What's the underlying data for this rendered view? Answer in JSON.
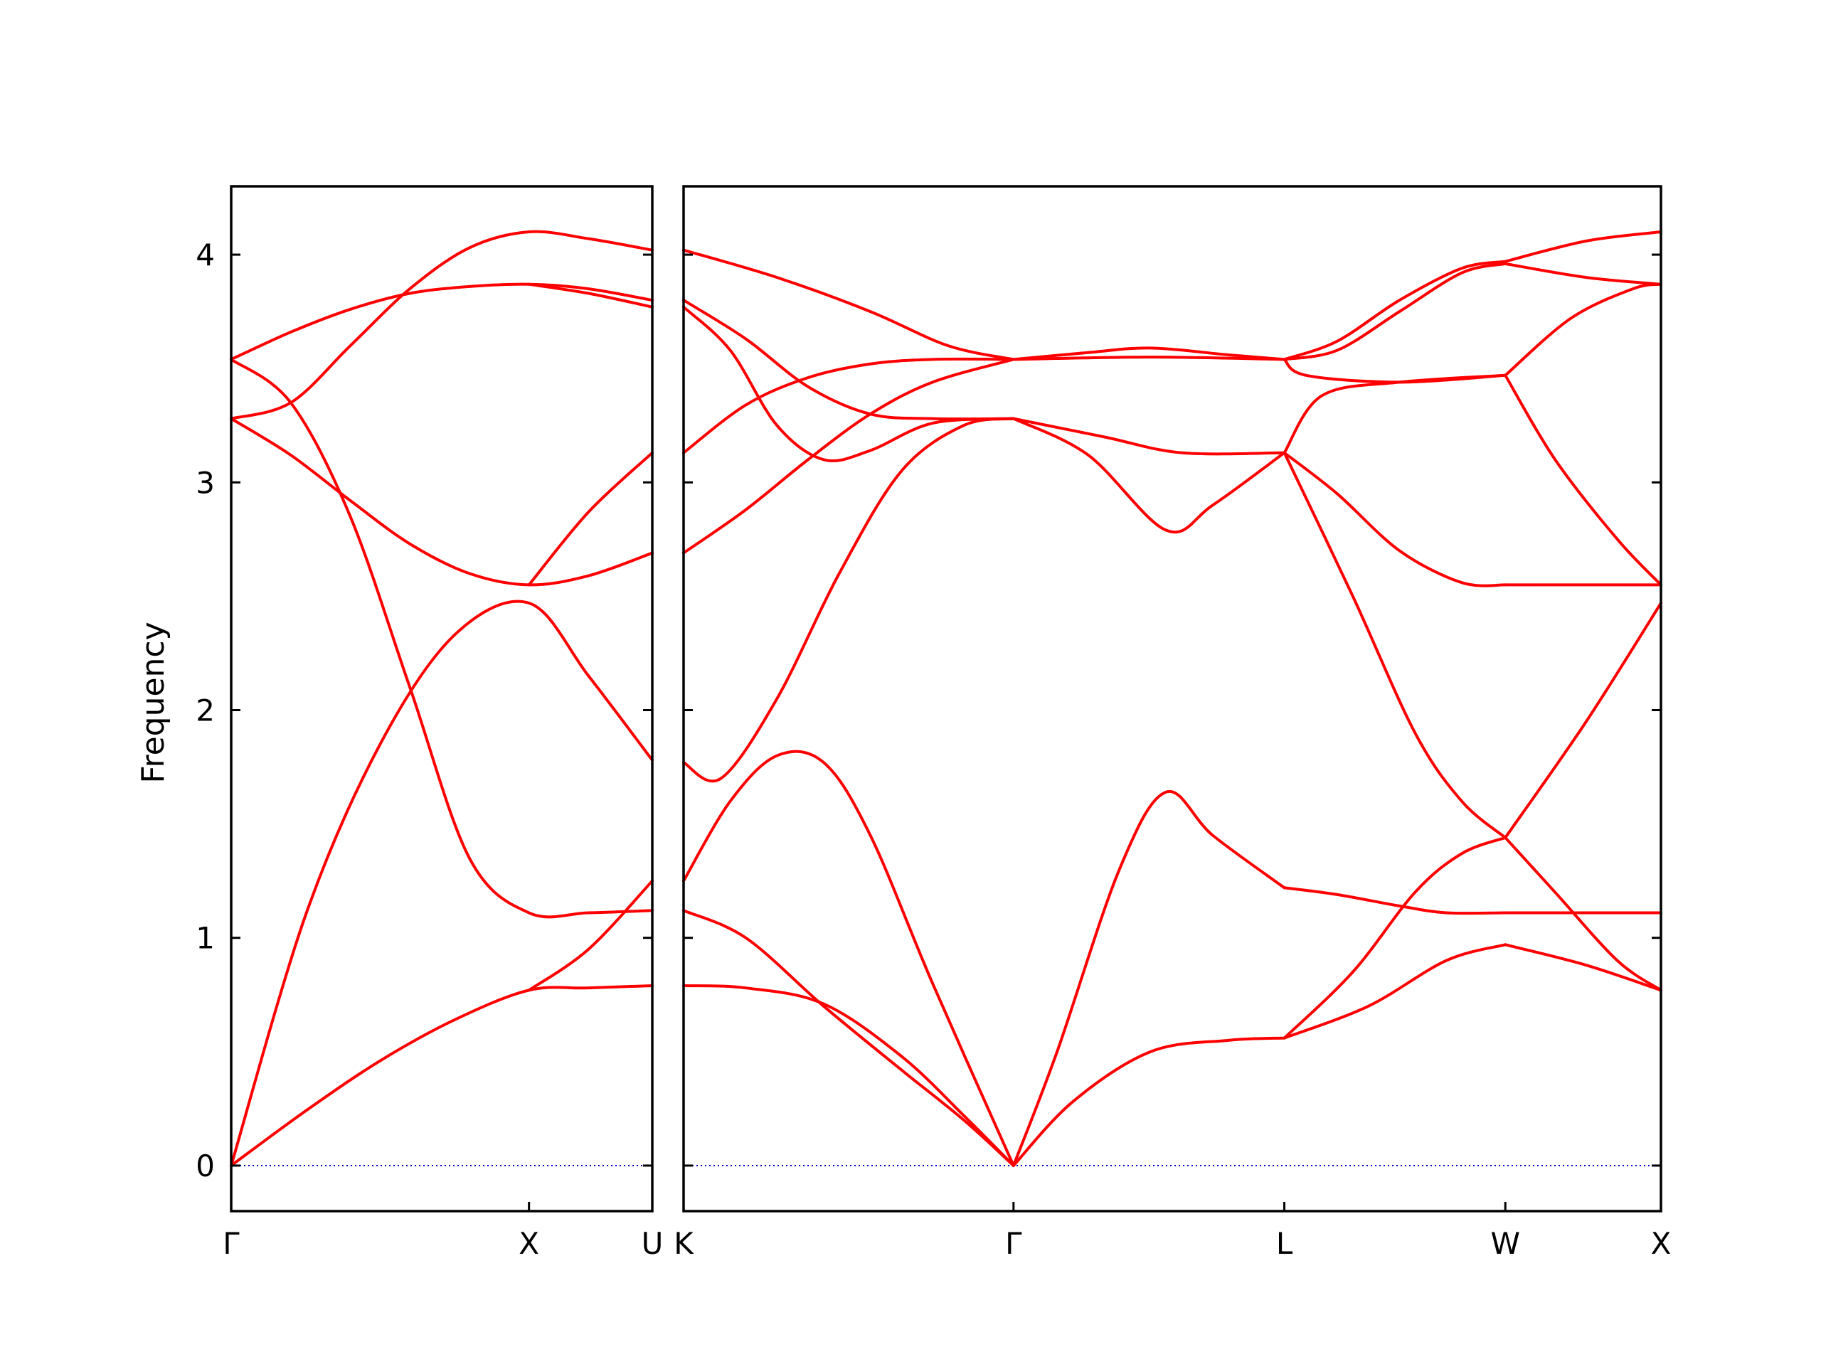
{
  "chart_data": {
    "type": "line",
    "title": "",
    "ylabel": "Frequency",
    "ylim": [
      -0.2,
      4.3
    ],
    "y_ticks": [
      0,
      1,
      2,
      3,
      4
    ],
    "y_tick_labels": [
      "0",
      "1",
      "2",
      "3",
      "4"
    ],
    "grid": false,
    "colors": {
      "bands": "#ff0000",
      "zero_line": "#0000cc",
      "axes": "#000000"
    },
    "panels": [
      {
        "x_range": [
          0,
          1.414
        ],
        "x_ticks": [
          0,
          1.0,
          1.414
        ],
        "x_tick_labels": [
          "Γ",
          "X",
          "U"
        ],
        "series": [
          {
            "x": [
              0,
              0.25,
              0.5,
              0.75,
              1.0,
              1.2,
              1.414
            ],
            "y": [
              0.0,
              0.24,
              0.46,
              0.64,
              0.77,
              0.78,
              0.79
            ]
          },
          {
            "x": [
              0,
              0.25,
              0.5,
              0.75,
              1.0,
              1.2,
              1.414
            ],
            "y": [
              0.0,
              1.1,
              1.85,
              2.33,
              2.47,
              2.15,
              1.78
            ]
          },
          {
            "x": [
              0,
              0.2,
              0.4,
              0.6,
              0.8,
              1.0,
              1.2,
              1.414
            ],
            "y": [
              3.54,
              3.35,
              2.85,
              2.1,
              1.35,
              1.11,
              1.11,
              1.12
            ]
          },
          {
            "x": [
              0,
              0.2,
              0.4,
              0.6,
              0.8,
              1.0,
              1.2,
              1.414
            ],
            "y": [
              3.28,
              3.12,
              2.92,
              2.73,
              2.6,
              2.55,
              2.59,
              2.69
            ]
          },
          {
            "x": [
              0,
              0.2,
              0.4,
              0.6,
              0.8,
              1.0,
              1.2,
              1.414
            ],
            "y": [
              3.28,
              3.35,
              3.6,
              3.85,
              4.03,
              4.1,
              4.07,
              4.02
            ]
          },
          {
            "x": [
              0,
              0.2,
              0.4,
              0.6,
              0.8,
              1.0,
              1.2,
              1.414
            ],
            "y": [
              3.54,
              3.66,
              3.76,
              3.83,
              3.86,
              3.87,
              3.85,
              3.8
            ]
          },
          {
            "x": [
              1.0,
              1.2,
              1.414
            ],
            "y": [
              2.55,
              2.87,
              3.13
            ]
          },
          {
            "x": [
              1.0,
              1.2,
              1.414
            ],
            "y": [
              0.77,
              0.95,
              1.25
            ]
          },
          {
            "x": [
              1.0,
              1.2,
              1.414
            ],
            "y": [
              3.87,
              3.83,
              3.77
            ]
          }
        ]
      },
      {
        "x_range": [
          0,
          3.14
        ],
        "x_ticks": [
          0,
          1.06,
          1.93,
          2.64,
          3.14
        ],
        "x_tick_labels": [
          "K",
          "Γ",
          "L",
          "W",
          "X"
        ],
        "series": [
          {
            "x": [
              0,
              0.2,
              0.45,
              0.7,
              0.9,
              1.06
            ],
            "y": [
              0.79,
              0.78,
              0.71,
              0.48,
              0.22,
              0.0
            ]
          },
          {
            "x": [
              0,
              0.2,
              0.45,
              0.7,
              0.9,
              1.06
            ],
            "y": [
              1.12,
              1.0,
              0.7,
              0.42,
              0.2,
              0.0
            ]
          },
          {
            "x": [
              0,
              0.15,
              0.3,
              0.45,
              0.6,
              0.8,
              1.06
            ],
            "y": [
              1.25,
              1.6,
              1.8,
              1.77,
              1.45,
              0.8,
              0.0
            ]
          },
          {
            "x": [
              0,
              0.12,
              0.3,
              0.5,
              0.7,
              0.9,
              1.06
            ],
            "y": [
              1.77,
              1.7,
              2.05,
              2.6,
              3.05,
              3.25,
              3.28
            ]
          },
          {
            "x": [
              0,
              0.2,
              0.4,
              0.6,
              0.8,
              1.06
            ],
            "y": [
              2.69,
              2.88,
              3.1,
              3.3,
              3.44,
              3.54
            ]
          },
          {
            "x": [
              0,
              0.2,
              0.4,
              0.6,
              0.8,
              1.06
            ],
            "y": [
              3.13,
              3.34,
              3.46,
              3.52,
              3.54,
              3.54
            ]
          },
          {
            "x": [
              0,
              0.2,
              0.4,
              0.6,
              0.8,
              1.06
            ],
            "y": [
              3.8,
              3.63,
              3.42,
              3.3,
              3.28,
              3.28
            ]
          },
          {
            "x": [
              0,
              0.15,
              0.3,
              0.45,
              0.6,
              0.8,
              1.06
            ],
            "y": [
              3.77,
              3.58,
              3.25,
              3.1,
              3.14,
              3.26,
              3.28
            ]
          },
          {
            "x": [
              0,
              0.3,
              0.6,
              0.85,
              1.06
            ],
            "y": [
              4.02,
              3.9,
              3.75,
              3.6,
              3.54
            ]
          },
          {
            "x": [
              1.06,
              1.2,
              1.4,
              1.55,
              1.7,
              1.93
            ],
            "y": [
              0.0,
              0.5,
              1.3,
              1.64,
              1.45,
              1.22
            ]
          },
          {
            "x": [
              1.06,
              1.25,
              1.5,
              1.75,
              1.93
            ],
            "y": [
              0.0,
              0.28,
              0.5,
              0.55,
              0.56
            ]
          },
          {
            "x": [
              1.06,
              1.3,
              1.55,
              1.7,
              1.93
            ],
            "y": [
              3.28,
              3.12,
              2.79,
              2.9,
              3.13
            ]
          },
          {
            "x": [
              1.06,
              1.35,
              1.6,
              1.93
            ],
            "y": [
              3.28,
              3.2,
              3.13,
              3.13
            ]
          },
          {
            "x": [
              1.06,
              1.3,
              1.5,
              1.75,
              1.93
            ],
            "y": [
              3.54,
              3.57,
              3.59,
              3.56,
              3.54
            ]
          },
          {
            "x": [
              1.06,
              1.5,
              1.93
            ],
            "y": [
              3.54,
              3.55,
              3.54
            ]
          },
          {
            "x": [
              1.93,
              2.1,
              2.3,
              2.45,
              2.64
            ],
            "y": [
              1.22,
              1.19,
              1.14,
              1.11,
              1.11
            ]
          },
          {
            "x": [
              2.64,
              2.9,
              3.14
            ],
            "y": [
              1.11,
              1.11,
              1.11
            ]
          },
          {
            "x": [
              1.93,
              2.2,
              2.45,
              2.64
            ],
            "y": [
              0.56,
              0.7,
              0.9,
              0.97
            ]
          },
          {
            "x": [
              2.64,
              2.9,
              3.14
            ],
            "y": [
              0.97,
              0.88,
              0.77
            ]
          },
          {
            "x": [
              1.93,
              2.15,
              2.35,
              2.5,
              2.64
            ],
            "y": [
              0.56,
              0.85,
              1.2,
              1.37,
              1.44
            ]
          },
          {
            "x": [
              2.64,
              2.9,
              3.14
            ],
            "y": [
              1.44,
              1.95,
              2.47
            ]
          },
          {
            "x": [
              1.93,
              2.15,
              2.35,
              2.5,
              2.64
            ],
            "y": [
              3.13,
              2.5,
              1.9,
              1.6,
              1.44
            ]
          },
          {
            "x": [
              2.64,
              2.8,
              3.0,
              3.14
            ],
            "y": [
              1.44,
              1.2,
              0.9,
              0.77
            ]
          },
          {
            "x": [
              1.93,
              2.1,
              2.3,
              2.5,
              2.64
            ],
            "y": [
              3.13,
              2.95,
              2.7,
              2.56,
              2.55
            ]
          },
          {
            "x": [
              2.64,
              2.9,
              3.14
            ],
            "y": [
              2.55,
              2.55,
              2.55
            ]
          },
          {
            "x": [
              1.93,
              2.05,
              2.3,
              2.64
            ],
            "y": [
              3.13,
              3.38,
              3.44,
              3.47
            ]
          },
          {
            "x": [
              2.64,
              2.8,
              3.0,
              3.14
            ],
            "y": [
              3.47,
              3.1,
              2.75,
              2.55
            ]
          },
          {
            "x": [
              1.93,
              2.0,
              2.3,
              2.64
            ],
            "y": [
              3.54,
              3.47,
              3.44,
              3.47
            ]
          },
          {
            "x": [
              2.64,
              2.85,
              3.05,
              3.14
            ],
            "y": [
              3.47,
              3.72,
              3.85,
              3.87
            ]
          },
          {
            "x": [
              1.93,
              2.1,
              2.3,
              2.5,
              2.64
            ],
            "y": [
              3.54,
              3.58,
              3.75,
              3.92,
              3.96
            ]
          },
          {
            "x": [
              2.64,
              2.9,
              3.14
            ],
            "y": [
              3.96,
              3.9,
              3.87
            ]
          },
          {
            "x": [
              1.93,
              2.1,
              2.3,
              2.5,
              2.64
            ],
            "y": [
              3.54,
              3.62,
              3.8,
              3.94,
              3.97
            ]
          },
          {
            "x": [
              2.64,
              2.9,
              3.14
            ],
            "y": [
              3.97,
              4.06,
              4.1
            ]
          }
        ]
      }
    ]
  }
}
